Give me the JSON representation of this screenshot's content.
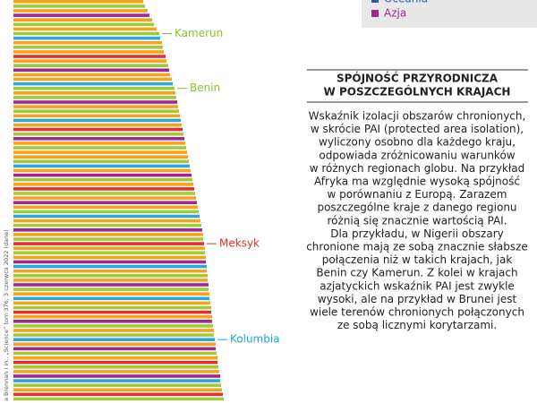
{
  "chart_data": {
    "type": "barh",
    "legend": [
      {
        "name": "Oceania",
        "color": "#2b5aa8"
      },
      {
        "name": "Azja",
        "color": "#a0288f"
      }
    ],
    "categories": [
      null,
      null,
      null,
      null,
      null,
      null,
      null,
      "Kamerun",
      null,
      null,
      null,
      null,
      null,
      null,
      null,
      null,
      null,
      null,
      null,
      "Benin",
      null,
      null,
      null,
      null,
      null,
      null,
      null,
      null,
      null,
      null,
      null,
      null,
      null,
      null,
      null,
      null,
      null,
      null,
      null,
      null,
      null,
      null,
      null,
      null,
      null,
      null,
      null,
      null,
      null,
      null,
      null,
      null,
      null,
      "Meksyk",
      null,
      null,
      null,
      null,
      null,
      null,
      null,
      null,
      null,
      null,
      null,
      null,
      null,
      null,
      null,
      null,
      null,
      null,
      null,
      null,
      "Kolumbia",
      null,
      null,
      null,
      null,
      null,
      null,
      null,
      null,
      null,
      null,
      null,
      null,
      null
    ],
    "label_colors": {
      "Kamerun": "#8fbf2a",
      "Benin": "#8fbf2a",
      "Meksyk": "#e4312b",
      "Kolumbia": "#1ea5e0"
    },
    "values": [
      145,
      147,
      150,
      152,
      155,
      157,
      160,
      163,
      164,
      166,
      167,
      168,
      170,
      171,
      173,
      174,
      175,
      177,
      178,
      180,
      181,
      182,
      183,
      184,
      185,
      186,
      187,
      188,
      189,
      190,
      191,
      192,
      193,
      194,
      195,
      196,
      197,
      198,
      199,
      200,
      201,
      202,
      203,
      204,
      205,
      206,
      207,
      208,
      209,
      210,
      211,
      212,
      212,
      213,
      214,
      214,
      215,
      215,
      216,
      216,
      217,
      217,
      218,
      218,
      219,
      219,
      220,
      221,
      221,
      222,
      222,
      223,
      224,
      224,
      225,
      226,
      226,
      227,
      228,
      228,
      229,
      230,
      231,
      231,
      232,
      233,
      234,
      235
    ],
    "colors": [
      "#f7a21b",
      "#a3c93a",
      "#f7a21b",
      "#a0288f",
      "#f7a21b",
      "#a3c93a",
      "#f7a21b",
      "#a3c93a",
      "#2aa8e0",
      "#f7a21b",
      "#a3c93a",
      "#f7a21b",
      "#e4312b",
      "#f7a21b",
      "#a3c93a",
      "#a0288f",
      "#f7a21b",
      "#f7a21b",
      "#2aa8e0",
      "#a3c93a",
      "#f7a21b",
      "#a3c93a",
      "#a0288f",
      "#f7a21b",
      "#a3c93a",
      "#f7a21b",
      "#2aa8e0",
      "#f7a21b",
      "#e4312b",
      "#a3c93a",
      "#a0288f",
      "#f7a21b",
      "#a3c93a",
      "#f7a21b",
      "#f7a21b",
      "#a3c93a",
      "#2aa8e0",
      "#f7a21b",
      "#a0288f",
      "#a3c93a",
      "#f7a21b",
      "#e4312b",
      "#a3c93a",
      "#f7a21b",
      "#a0288f",
      "#f7a21b",
      "#a3c93a",
      "#2aa8e0",
      "#f7a21b",
      "#a3c93a",
      "#a0288f",
      "#f7a21b",
      "#a3c93a",
      "#e4312b",
      "#f7a21b",
      "#a3c93a",
      "#f7a21b",
      "#a0288f",
      "#2aa8e0",
      "#f7a21b",
      "#a3c93a",
      "#f7a21b",
      "#a0288f",
      "#a3c93a",
      "#f7a21b",
      "#2aa8e0",
      "#f7a21b",
      "#a3c93a",
      "#e4312b",
      "#f7a21b",
      "#a0288f",
      "#a3c93a",
      "#f7a21b",
      "#a3c93a",
      "#2aa8e0",
      "#f7a21b",
      "#a0288f",
      "#a3c93a",
      "#f7a21b",
      "#e4312b",
      "#a3c93a",
      "#f7a21b",
      "#a0288f",
      "#2aa8e0",
      "#a3c93a",
      "#f7a21b",
      "#e4312b",
      "#a3c93a"
    ],
    "source": "a Brennan i in., „Science” tom 376; 3 czerwca 2022 (dane)",
    "box_title": [
      "SPÓJNOŚĆ PRZYRODNICZA",
      "W POSZCZEGÓLNYCH KRAJACH"
    ],
    "box_text": [
      "Wskaźnik izolacji obszarów chronionych,",
      "w skrócie PAI (protected area isolation),",
      "wyliczony osobno dla każdego kraju,",
      "odpowiada zróżnicowaniu warunków",
      "w różnych regionach globu. Na przykład",
      "Afryka ma względnie wysoką spójność",
      "w porównaniu z Europą. Zarazem",
      "poszczególne kraje z danego regionu",
      "różnią się znacznie wartością PAI.",
      "Dla przykładu, w Nigerii obszary",
      "chronione mają ze sobą znacznie słabsze",
      "połączenia niż w takich krajach, jak",
      "Benin czy Kamerun. Z kolei w krajach",
      "azjatyckich wskaźnik PAI jest zwykle",
      "wysoki, ale na przykład w Brunei jest",
      "wiele terenów chronionych połączonych",
      "ze sobą licznymi korytarzami."
    ]
  }
}
